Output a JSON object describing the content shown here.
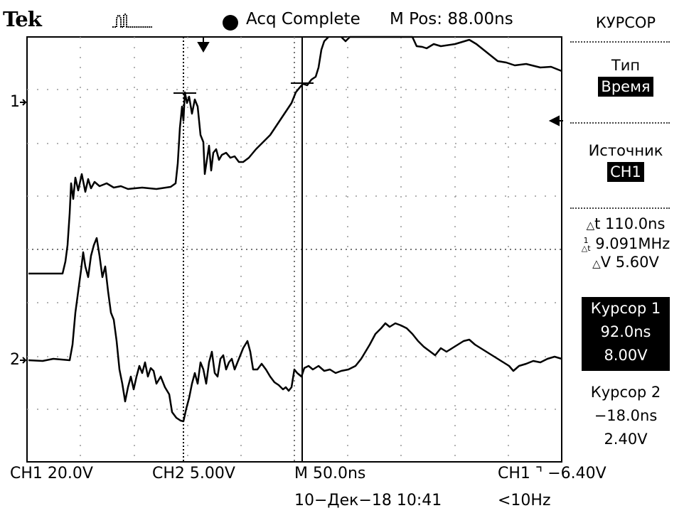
{
  "header": {
    "brand": "Tek",
    "trigger_icon": "pulse-trigger-icon",
    "acq_status": "Acq Complete",
    "position": "M Pos: 88.00ns"
  },
  "menu": {
    "title": "КУРСОР",
    "type_label": "Тип",
    "type_value": "Время",
    "source_label": "Источник",
    "source_value": "CH1",
    "delta_t": "110.0ns",
    "inv_delta_t": "9.091MHz",
    "delta_v": "5.60V",
    "cursor1_label": "Курсор 1",
    "cursor1_time": "92.0ns",
    "cursor1_volt": "8.00V",
    "cursor2_label": "Курсор 2",
    "cursor2_time": "−18.0ns",
    "cursor2_volt": "2.40V"
  },
  "channels": {
    "ch1_marker": "1",
    "ch2_marker": "2"
  },
  "footer": {
    "ch1_scale": "CH1  20.0V",
    "ch2_scale": "CH2  5.00V",
    "timebase": "M 50.0ns",
    "trigger": "CH1 ⌝ −6.40V",
    "date": "10−Дек−18 10:41",
    "freq": "<10Hz"
  },
  "colors": {
    "background": "#ffffff",
    "trace": "#000000",
    "grid": "#999999"
  }
}
